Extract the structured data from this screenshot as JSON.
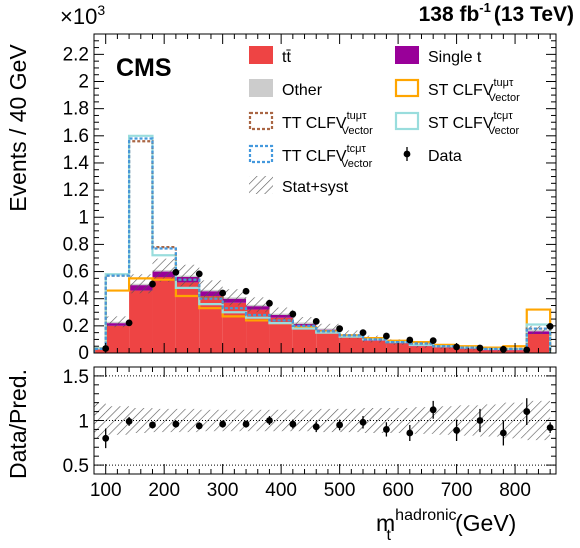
{
  "header": {
    "experiment": "CMS",
    "lumi_value": "138 fb",
    "lumi_exponent": "-1",
    "lumi_energy": "(13 TeV)",
    "multiplier_base": "×10",
    "multiplier_exponent": "3"
  },
  "colors": {
    "ttbar": "#ee4444",
    "single_t": "#990099",
    "other": "#cccccc",
    "st_tumutau": "#ffa500",
    "st_tcmutau": "#99dddd",
    "tt_tumutau": "#aa6644",
    "tt_tcmutau": "#4499dd",
    "data": "#000000",
    "band": "#555555"
  },
  "legend": {
    "items": [
      {
        "key": "ttbar",
        "label": "tt̄",
        "sup": "",
        "sub": "",
        "style": "fill"
      },
      {
        "key": "single_t",
        "label": "Single t",
        "sup": "",
        "sub": "",
        "style": "fill"
      },
      {
        "key": "other",
        "label": "Other",
        "sup": "",
        "sub": "",
        "style": "fill"
      },
      {
        "key": "st_tumutau",
        "label": "ST CLFV",
        "sup": "tuμτ",
        "sub": "Vector",
        "style": "box"
      },
      {
        "key": "tt_tumutau",
        "label": "TT CLFV",
        "sup": "tuμτ",
        "sub": "Vector",
        "style": "dashbox"
      },
      {
        "key": "st_tcmutau",
        "label": "ST CLFV",
        "sup": "tcμτ",
        "sub": "Vector",
        "style": "box"
      },
      {
        "key": "tt_tcmutau",
        "label": "TT CLFV",
        "sup": "tcμτ",
        "sub": "Vector",
        "style": "dashbox"
      },
      {
        "key": "data",
        "label": "Data",
        "sup": "",
        "sub": "",
        "style": "marker"
      },
      {
        "key": "band",
        "label": "Stat+syst",
        "sup": "",
        "sub": "",
        "style": "hatch"
      }
    ]
  },
  "chart_data": [
    {
      "type": "bar",
      "title": "",
      "ylabel": "Events / 40 GeV",
      "xlim": [
        80,
        870
      ],
      "ylim": [
        0,
        2.35
      ],
      "yticks": [
        0,
        0.2,
        0.4,
        0.6,
        0.8,
        1,
        1.2,
        1.4,
        1.6,
        1.8,
        2,
        2.2
      ],
      "ytick_labels": [
        "0",
        "0.2",
        "0.4",
        "0.6",
        "0.8",
        "1",
        "1.2",
        "1.4",
        "1.6",
        "1.8",
        "2",
        "2.2"
      ],
      "bin_edges": [
        80,
        100,
        140,
        180,
        220,
        260,
        300,
        340,
        380,
        420,
        460,
        500,
        540,
        580,
        620,
        660,
        700,
        740,
        780,
        820,
        860
      ],
      "stack": [
        {
          "name": "tt̄",
          "color_key": "ttbar",
          "values": [
            0.025,
            0.2,
            0.46,
            0.56,
            0.52,
            0.42,
            0.37,
            0.32,
            0.26,
            0.2,
            0.16,
            0.12,
            0.09,
            0.07,
            0.05,
            0.04,
            0.03,
            0.02,
            0.02,
            0.14
          ]
        },
        {
          "name": "Single t",
          "color_key": "single_t",
          "values": [
            0.005,
            0.02,
            0.04,
            0.04,
            0.04,
            0.035,
            0.03,
            0.025,
            0.02,
            0.015,
            0.012,
            0.01,
            0.008,
            0.007,
            0.005,
            0.004,
            0.003,
            0.003,
            0.002,
            0.02
          ]
        },
        {
          "name": "Other",
          "color_key": "other",
          "values": [
            0.005,
            0.01,
            0.01,
            0.01,
            0.01,
            0.01,
            0.01,
            0.01,
            0.01,
            0.01,
            0.008,
            0.006,
            0.005,
            0.004,
            0.003,
            0.003,
            0.002,
            0.002,
            0.002,
            0.01
          ]
        }
      ],
      "uncertainty": {
        "name": "Stat+syst",
        "values": [
          0.006,
          0.04,
          0.07,
          0.085,
          0.08,
          0.07,
          0.06,
          0.055,
          0.045,
          0.04,
          0.035,
          0.03,
          0.025,
          0.02,
          0.018,
          0.016,
          0.015,
          0.013,
          0.012,
          0.03
        ]
      },
      "signals": [
        {
          "name": "ST CLFV tuμτ Vector",
          "color_key": "st_tumutau",
          "dash": false,
          "values": [
            0.035,
            0.46,
            0.55,
            0.54,
            0.42,
            0.33,
            0.27,
            0.24,
            0.22,
            0.19,
            0.16,
            0.13,
            0.11,
            0.09,
            0.08,
            0.06,
            0.05,
            0.04,
            0.05,
            0.32
          ]
        },
        {
          "name": "ST CLFV tcμτ Vector",
          "color_key": "st_tcmutau",
          "dash": false,
          "values": [
            0.035,
            0.58,
            1.6,
            0.72,
            0.48,
            0.36,
            0.3,
            0.26,
            0.22,
            0.18,
            0.15,
            0.12,
            0.1,
            0.08,
            0.06,
            0.05,
            0.04,
            0.03,
            0.03,
            0.21
          ]
        },
        {
          "name": "TT CLFV tuμτ Vector",
          "color_key": "tt_tumutau",
          "dash": true,
          "values": [
            0.03,
            0.57,
            1.56,
            0.78,
            0.54,
            0.41,
            0.33,
            0.28,
            0.24,
            0.2,
            0.16,
            0.13,
            0.1,
            0.08,
            0.07,
            0.05,
            0.04,
            0.03,
            0.03,
            0.18
          ]
        },
        {
          "name": "TT CLFV tcμτ Vector",
          "color_key": "tt_tcmutau",
          "dash": true,
          "values": [
            0.03,
            0.57,
            1.58,
            0.77,
            0.54,
            0.4,
            0.33,
            0.28,
            0.24,
            0.2,
            0.16,
            0.13,
            0.1,
            0.08,
            0.07,
            0.05,
            0.04,
            0.03,
            0.03,
            0.18
          ]
        }
      ],
      "data": {
        "name": "Data",
        "x": [
          100,
          140,
          180,
          220,
          260,
          300,
          340,
          380,
          420,
          460,
          500,
          540,
          580,
          620,
          660,
          700,
          740,
          780,
          820,
          860
        ],
        "y": [
          0.033,
          0.222,
          0.508,
          0.595,
          0.583,
          0.442,
          0.455,
          0.366,
          0.287,
          0.233,
          0.179,
          0.15,
          0.125,
          0.096,
          0.091,
          0.044,
          0.037,
          0.027,
          0.023,
          0.196
        ],
        "err": [
          0.006,
          0.015,
          0.023,
          0.024,
          0.024,
          0.021,
          0.021,
          0.019,
          0.017,
          0.015,
          0.013,
          0.012,
          0.011,
          0.01,
          0.009,
          0.007,
          0.006,
          0.005,
          0.005,
          0.014
        ]
      }
    },
    {
      "type": "scatter",
      "title": "",
      "ylabel": "Data/Pred.",
      "xlabel": "m",
      "xlabel_sup": "hadronic",
      "xlabel_sub": "t",
      "xlabel_unit": "(GeV)",
      "xlim": [
        80,
        870
      ],
      "ylim": [
        0.4,
        1.6
      ],
      "yticks": [
        0.5,
        1,
        1.5
      ],
      "ytick_labels": [
        "0.5",
        "1",
        "1.5"
      ],
      "xticks": [
        100,
        200,
        300,
        400,
        500,
        600,
        700,
        800
      ],
      "xtick_labels": [
        "100",
        "200",
        "300",
        "400",
        "500",
        "600",
        "700",
        "800"
      ],
      "reference_lines": [
        0.5,
        1.0,
        1.5
      ],
      "band_halfwidth": [
        0.2,
        0.16,
        0.14,
        0.13,
        0.13,
        0.12,
        0.12,
        0.12,
        0.12,
        0.12,
        0.13,
        0.13,
        0.14,
        0.14,
        0.15,
        0.16,
        0.17,
        0.18,
        0.2,
        0.22
      ],
      "x": [
        100,
        140,
        180,
        220,
        260,
        300,
        340,
        380,
        420,
        460,
        500,
        540,
        580,
        620,
        660,
        700,
        740,
        780,
        820,
        860
      ],
      "y": [
        0.8,
        0.99,
        0.95,
        0.96,
        0.94,
        0.96,
        0.96,
        1.0,
        0.96,
        0.93,
        0.95,
        0.98,
        0.9,
        0.86,
        1.12,
        0.89,
        1.0,
        0.86,
        1.1,
        0.92
      ],
      "err": [
        0.11,
        0.05,
        0.04,
        0.04,
        0.04,
        0.04,
        0.04,
        0.05,
        0.05,
        0.06,
        0.06,
        0.07,
        0.08,
        0.09,
        0.1,
        0.12,
        0.13,
        0.14,
        0.15,
        0.06
      ]
    }
  ]
}
